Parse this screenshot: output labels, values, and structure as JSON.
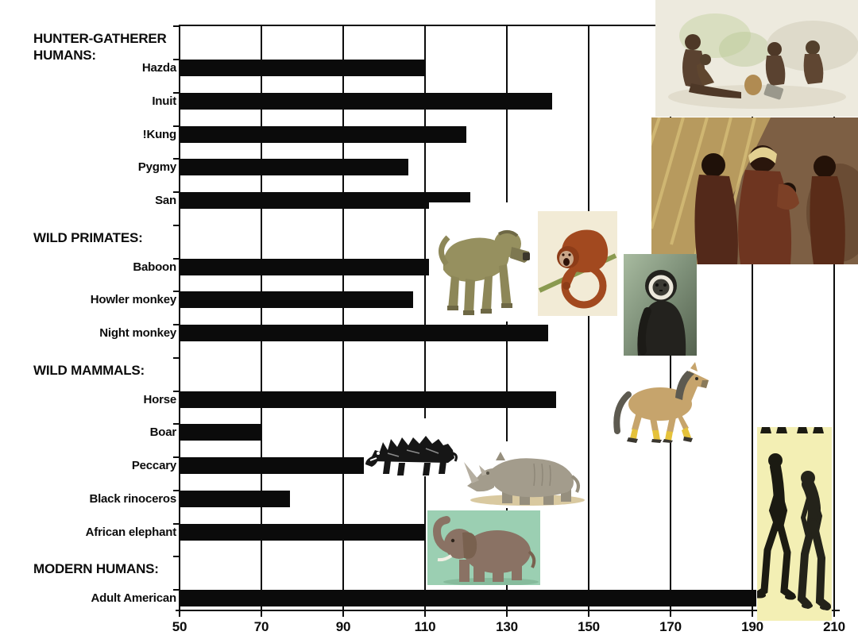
{
  "chart_data": {
    "type": "bar",
    "orientation": "horizontal",
    "title": "",
    "xlabel": "",
    "ylabel": "",
    "xlim": [
      50,
      210
    ],
    "x_ticks": [
      50,
      70,
      90,
      110,
      130,
      150,
      170,
      190,
      210
    ],
    "grid": true,
    "bar_color": "#0b0b0b",
    "groups": [
      {
        "header": "HUNTER-GATHERER\nHUMANS:",
        "items": [
          {
            "label": "Hazda",
            "value": 110
          },
          {
            "label": "Inuit",
            "value": 141
          },
          {
            "label": "!Kung",
            "value": 120
          },
          {
            "label": "Pygmy",
            "value": 106
          },
          {
            "label": "San",
            "value": 121
          }
        ]
      },
      {
        "header": "WILD PRIMATES:",
        "items": [
          {
            "label": "Baboon",
            "value": 111
          },
          {
            "label": "Howler monkey",
            "value": 107
          },
          {
            "label": "Night monkey",
            "value": 140
          }
        ]
      },
      {
        "header": "WILD MAMMALS:",
        "items": [
          {
            "label": "Horse",
            "value": 142
          },
          {
            "label": "Boar",
            "value": 70
          },
          {
            "label": "Peccary",
            "value": 96
          },
          {
            "label": "Black rinoceros",
            "value": 77
          },
          {
            "label": "African elephant",
            "value": 110
          }
        ]
      },
      {
        "header": "MODERN HUMANS:",
        "items": [
          {
            "label": "Adult American",
            "value": 191
          }
        ]
      }
    ]
  },
  "images": [
    {
      "name": "hunter-gatherer-camp-illustration"
    },
    {
      "name": "san-women-photo"
    },
    {
      "name": "baboon-photo"
    },
    {
      "name": "howler-monkey-illustration"
    },
    {
      "name": "gibbon-photo"
    },
    {
      "name": "horse-cartoon"
    },
    {
      "name": "wild-boar-sketch"
    },
    {
      "name": "black-rhinoceros-illustration"
    },
    {
      "name": "african-elephant-picture"
    },
    {
      "name": "hominid-silhouettes"
    }
  ],
  "colors": {
    "background": "#ffffff",
    "bar": "#0b0b0b",
    "grid": "#0c0c0c",
    "silhouette_panel_bg": "#f3efb4",
    "elephant_panel_bg": "#9bcfb2"
  }
}
